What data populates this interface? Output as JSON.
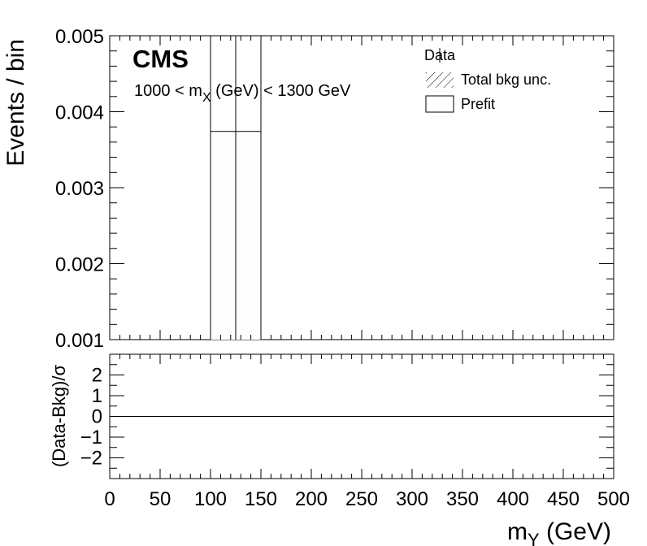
{
  "chart_data": [
    {
      "type": "bar",
      "panel": "main",
      "experiment_label": "CMS",
      "cut_label": {
        "pre": "1000 < m",
        "sub": "X",
        "post": " (GeV) < 1300 GeV"
      },
      "ylabel": "Events / bin",
      "ylim": [
        0.001,
        0.005
      ],
      "yticks": [
        "0.001",
        "0.002",
        "0.003",
        "0.004",
        "0.005"
      ],
      "xlim": [
        0,
        500
      ],
      "bins": [
        {
          "x_low": 100,
          "x_high": 125,
          "value": 0.00374
        },
        {
          "x_low": 125,
          "x_high": 150,
          "value": 0.00374
        }
      ],
      "legend": {
        "placement": "top-right",
        "entries": [
          {
            "label": "Data",
            "marker": "point"
          },
          {
            "label": "Total bkg unc.",
            "marker": "hatched-box"
          },
          {
            "label": "Prefit",
            "marker": "open-box"
          }
        ]
      }
    },
    {
      "type": "line",
      "panel": "ratio",
      "ylabel": "(Data-Bkg)/σ",
      "ylim": [
        -3,
        3
      ],
      "yticks": [
        "−2",
        "−1",
        "0",
        "1",
        "2"
      ],
      "ytick_values": [
        -2,
        -1,
        0,
        1,
        2
      ],
      "reference_line_y": 0,
      "xlabel": {
        "pre": "m",
        "sub": "Y",
        "post": " (GeV)"
      },
      "xlim": [
        0,
        500
      ],
      "xticks": [
        "0",
        "50",
        "100",
        "150",
        "200",
        "250",
        "300",
        "350",
        "400",
        "450",
        "500"
      ],
      "xtick_values": [
        0,
        50,
        100,
        150,
        200,
        250,
        300,
        350,
        400,
        450,
        500
      ]
    }
  ]
}
